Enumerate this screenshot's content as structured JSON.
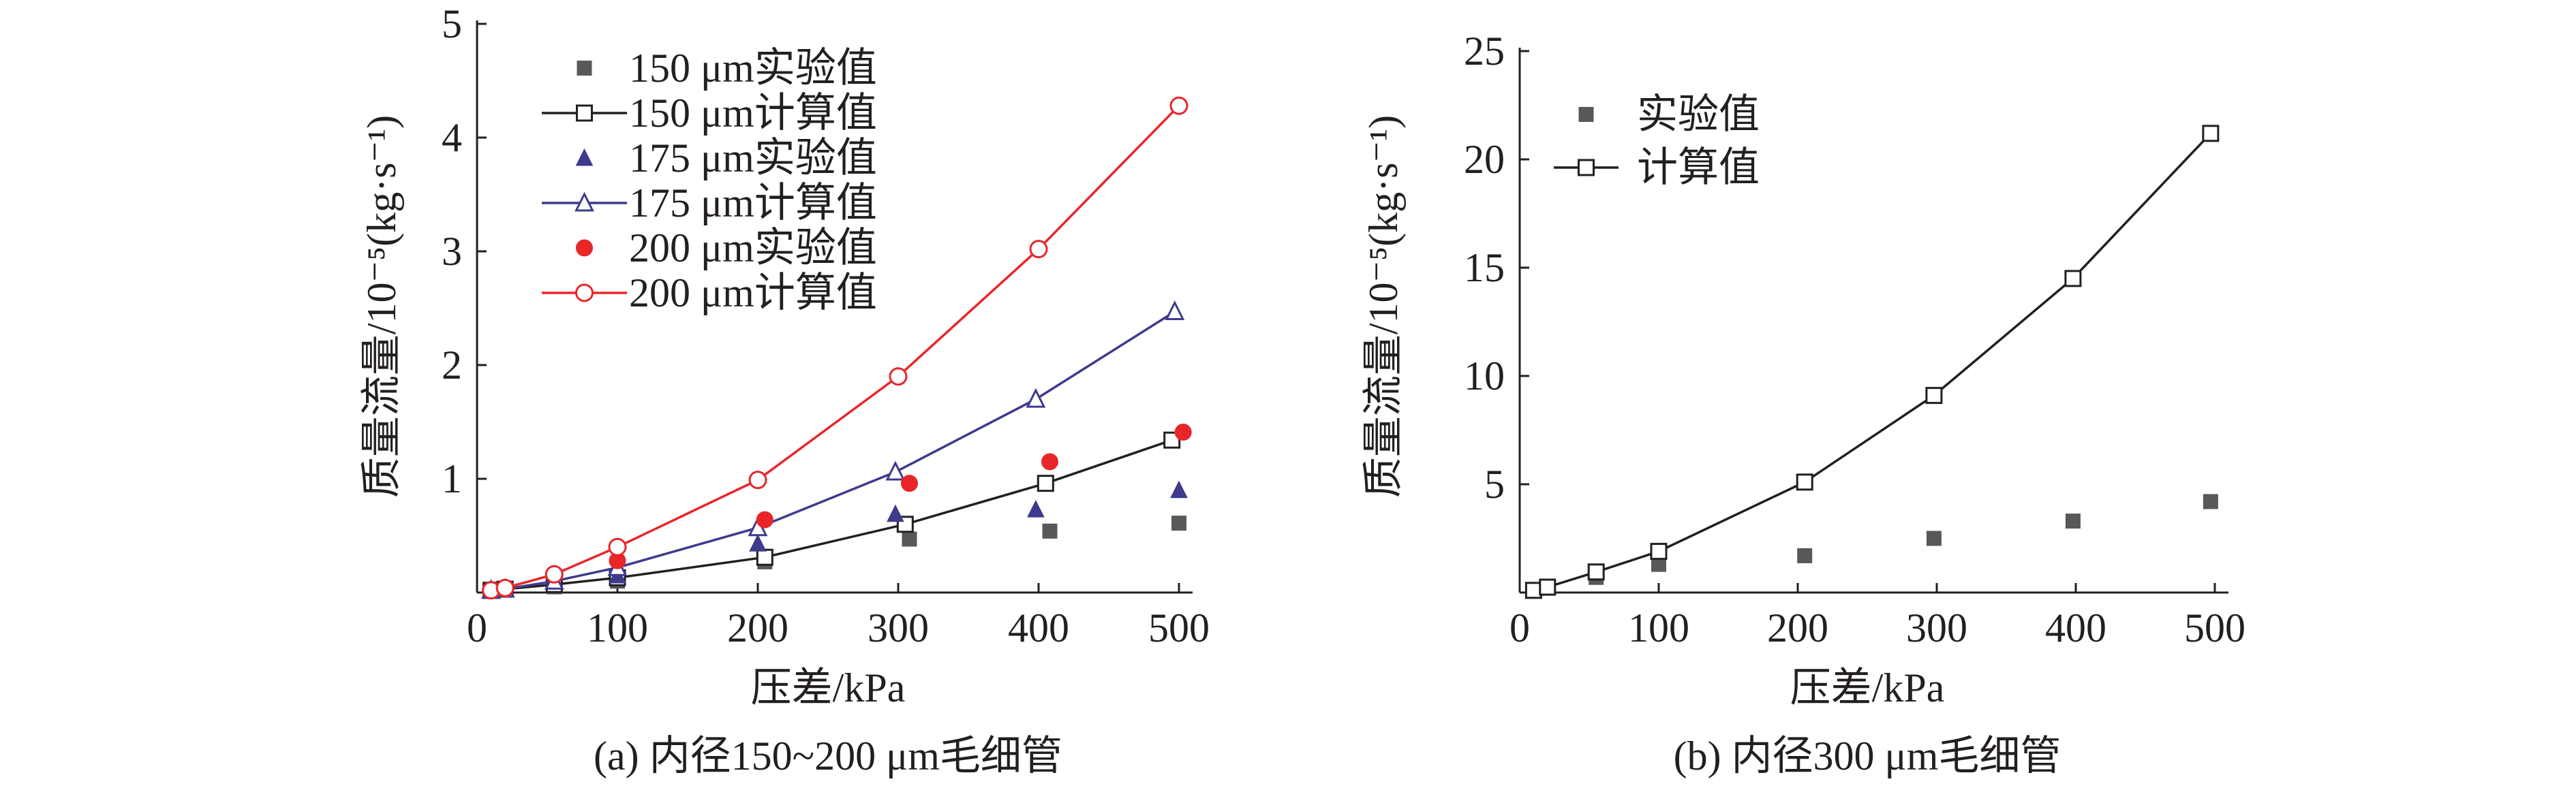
{
  "chart_data": [
    {
      "type": "line",
      "caption": "(a) 内径150~200 μm毛细管",
      "xlabel": "压差/kPa",
      "ylabel": "质量流量/10⁻⁵(kg·s⁻¹)",
      "xlim": [
        0,
        500
      ],
      "ylim": [
        0,
        5
      ],
      "xticks": [
        "0",
        "100",
        "200",
        "300",
        "400",
        "500"
      ],
      "yticks": [
        "1",
        "2",
        "3",
        "4",
        "5"
      ],
      "legend_position": "top-left",
      "series": [
        {
          "name": "150 μm实验值",
          "marker": "square-filled",
          "line": false,
          "color": "#595757",
          "x": [
            10,
            20,
            55,
            100,
            205,
            308,
            408,
            500
          ],
          "y": [
            0.01,
            0.02,
            0.05,
            0.1,
            0.27,
            0.47,
            0.54,
            0.61
          ]
        },
        {
          "name": "150 μm计算值",
          "marker": "square-open",
          "line": true,
          "color": "#231f20",
          "x": [
            10,
            20,
            55,
            100,
            205,
            305,
            405,
            495
          ],
          "y": [
            0.02,
            0.03,
            0.07,
            0.13,
            0.31,
            0.6,
            0.96,
            1.34
          ]
        },
        {
          "name": "175 μm实验值",
          "marker": "triangle-filled",
          "line": false,
          "color": "#3e3a8c",
          "x": [
            10,
            20,
            100,
            200,
            298,
            398,
            500
          ],
          "y": [
            0.02,
            0.03,
            0.15,
            0.43,
            0.69,
            0.73,
            0.9
          ]
        },
        {
          "name": "175 μm计算值",
          "marker": "triangle-open",
          "line": true,
          "color": "#3e3a8c",
          "x": [
            10,
            20,
            55,
            100,
            200,
            298,
            398,
            497
          ],
          "y": [
            0.02,
            0.03,
            0.1,
            0.22,
            0.57,
            1.06,
            1.7,
            2.47
          ]
        },
        {
          "name": "200 μm实验值",
          "marker": "circle-filled",
          "line": false,
          "color": "#e8262a",
          "x": [
            10,
            20,
            100,
            205,
            308,
            408,
            503
          ],
          "y": [
            0.02,
            0.03,
            0.28,
            0.64,
            0.96,
            1.15,
            1.41
          ]
        },
        {
          "name": "200 μm计算值",
          "marker": "circle-open",
          "line": true,
          "color": "#e8262a",
          "x": [
            10,
            20,
            55,
            100,
            200,
            300,
            400,
            500
          ],
          "y": [
            0.02,
            0.04,
            0.16,
            0.4,
            0.99,
            1.9,
            3.02,
            4.28
          ]
        }
      ]
    },
    {
      "type": "line",
      "caption": "(b) 内径300 μm毛细管",
      "xlabel": "压差/kPa",
      "ylabel": "质量流量/10⁻⁵(kg·s⁻¹)",
      "xlim": [
        0,
        500
      ],
      "ylim": [
        0,
        25
      ],
      "xticks": [
        "0",
        "100",
        "200",
        "300",
        "400",
        "500"
      ],
      "yticks": [
        "5",
        "10",
        "15",
        "20",
        "25"
      ],
      "legend_position": "top-left",
      "series": [
        {
          "name": "实验值",
          "marker": "square-filled",
          "line": false,
          "color": "#595757",
          "x": [
            10,
            20,
            55,
            100,
            205,
            298,
            398,
            497
          ],
          "y": [
            0.1,
            0.2,
            0.7,
            1.3,
            1.7,
            2.5,
            3.3,
            4.2
          ]
        },
        {
          "name": "计算值",
          "marker": "square-open",
          "line": true,
          "color": "#231f20",
          "x": [
            10,
            20,
            55,
            100,
            205,
            298,
            398,
            497
          ],
          "y": [
            0.1,
            0.25,
            0.95,
            1.9,
            5.1,
            9.1,
            14.5,
            21.2
          ]
        }
      ]
    }
  ]
}
